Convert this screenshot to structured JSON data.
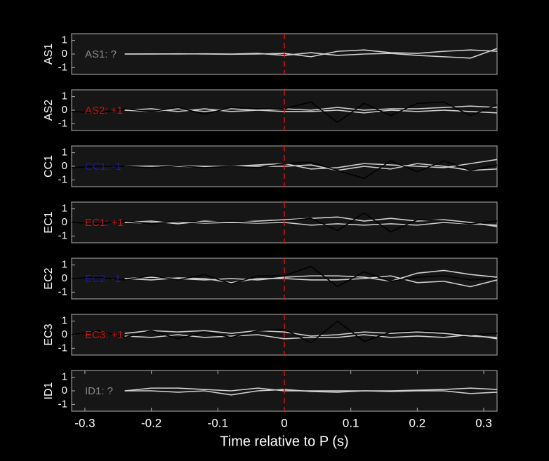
{
  "chart_data": [
    {
      "type": "line",
      "ylabel": "AS1",
      "annotation": "AS1: ?",
      "annotation_color": "#8a8a8a",
      "xlim": [
        -0.32,
        0.32
      ],
      "ylim": [
        -1.5,
        1.5
      ],
      "yticks": [
        -1,
        0,
        1
      ],
      "vline": 0,
      "vline_color": "#d01010",
      "x": [
        -0.32,
        -0.28,
        -0.24,
        -0.2,
        -0.16,
        -0.12,
        -0.08,
        -0.04,
        0,
        0.04,
        0.08,
        0.12,
        0.16,
        0.2,
        0.24,
        0.28,
        0.32
      ],
      "series": [
        {
          "color": "#d0d0d0",
          "values": [
            null,
            null,
            0,
            0,
            0.02,
            0,
            -0.02,
            0,
            0.05,
            -0.2,
            0.2,
            0.3,
            0.1,
            0.05,
            0.2,
            0.3,
            0.2
          ]
        },
        {
          "color": "#d0d0d0",
          "values": [
            null,
            null,
            0,
            0.01,
            0,
            0.02,
            0,
            0.05,
            -0.1,
            0.1,
            -0.1,
            0,
            0.05,
            -0.1,
            -0.2,
            -0.3,
            0.4
          ]
        }
      ]
    },
    {
      "type": "line",
      "ylabel": "AS2",
      "annotation": "AS2: +1",
      "annotation_color": "#cc1010",
      "xlim": [
        -0.32,
        0.32
      ],
      "ylim": [
        -1.5,
        1.5
      ],
      "yticks": [
        -1,
        0,
        1
      ],
      "vline": 0,
      "vline_color": "#d01010",
      "x": [
        -0.32,
        -0.28,
        -0.24,
        -0.2,
        -0.16,
        -0.12,
        -0.08,
        -0.04,
        0,
        0.04,
        0.08,
        0.12,
        0.16,
        0.2,
        0.24,
        0.28,
        0.32
      ],
      "series": [
        {
          "color": "#d0d0d0",
          "values": [
            null,
            null,
            0,
            0.1,
            -0.1,
            0.1,
            -0.1,
            0,
            0.1,
            0,
            0.2,
            0,
            0.1,
            0.1,
            0.2,
            0.3,
            0.2
          ]
        },
        {
          "color": "#d0d0d0",
          "values": [
            null,
            null,
            0,
            -0.1,
            0.1,
            -0.1,
            0.1,
            0,
            -0.1,
            -0.1,
            0,
            -0.2,
            0,
            -0.1,
            0,
            -0.1,
            -0.2
          ]
        },
        {
          "color": "#000000",
          "values": [
            -0.1,
            -0.2,
            0.1,
            -0.1,
            0.2,
            -0.3,
            0.2,
            0.1,
            0.1,
            0.6,
            -0.9,
            0.5,
            -0.4,
            0.5,
            0.6,
            -0.4,
            0.4
          ]
        }
      ]
    },
    {
      "type": "line",
      "ylabel": "CC1",
      "annotation": "CC1: -1",
      "annotation_color": "#1a1aa8",
      "xlim": [
        -0.32,
        0.32
      ],
      "ylim": [
        -1.5,
        1.5
      ],
      "yticks": [
        -1,
        0,
        1
      ],
      "vline": 0,
      "vline_color": "#d01010",
      "x": [
        -0.32,
        -0.28,
        -0.24,
        -0.2,
        -0.16,
        -0.12,
        -0.08,
        -0.04,
        0,
        0.04,
        0.08,
        0.12,
        0.16,
        0.2,
        0.24,
        0.28,
        0.32
      ],
      "series": [
        {
          "color": "#d0d0d0",
          "values": [
            null,
            null,
            0,
            0,
            0.05,
            0,
            0,
            0.1,
            0.2,
            -0.2,
            -0.1,
            0.2,
            0.1,
            0,
            -0.1,
            0.2,
            0.5
          ]
        },
        {
          "color": "#d0d0d0",
          "values": [
            null,
            null,
            0,
            0.02,
            0,
            -0.05,
            0,
            0,
            0,
            0.1,
            -0.3,
            0,
            -0.2,
            0.2,
            0,
            -0.3,
            -0.2
          ]
        },
        {
          "color": "#000000",
          "values": [
            -0.1,
            0,
            0,
            -0.1,
            0.05,
            -0.1,
            0,
            -0.1,
            0.2,
            0.3,
            -0.3,
            -0.9,
            0.4,
            -0.4,
            0.4,
            -0.3,
            0.1
          ]
        }
      ]
    },
    {
      "type": "line",
      "ylabel": "EC1",
      "annotation": "EC1: +1",
      "annotation_color": "#cc1010",
      "xlim": [
        -0.32,
        0.32
      ],
      "ylim": [
        -1.5,
        1.5
      ],
      "yticks": [
        -1,
        0,
        1
      ],
      "vline": 0,
      "vline_color": "#d01010",
      "x": [
        -0.32,
        -0.28,
        -0.24,
        -0.2,
        -0.16,
        -0.12,
        -0.08,
        -0.04,
        0,
        0.04,
        0.08,
        0.12,
        0.16,
        0.2,
        0.24,
        0.28,
        0.32
      ],
      "series": [
        {
          "color": "#d0d0d0",
          "values": [
            null,
            null,
            0,
            0.1,
            -0.1,
            0.1,
            0,
            0.1,
            0.2,
            0.3,
            0.4,
            0.1,
            0.3,
            0.1,
            0.2,
            0,
            -0.3
          ]
        },
        {
          "color": "#d0d0d0",
          "values": [
            null,
            null,
            0,
            -0.05,
            0.05,
            -0.05,
            0,
            -0.05,
            0,
            -0.2,
            -0.1,
            -0.2,
            -0.1,
            -0.2,
            0,
            -0.1,
            -0.2
          ]
        },
        {
          "color": "#000000",
          "values": [
            0,
            -0.1,
            0.1,
            -0.1,
            0.1,
            0,
            0.1,
            0,
            0.1,
            0.3,
            -0.6,
            0.7,
            -0.7,
            0.2,
            0.1,
            -0.1,
            0.1
          ]
        }
      ]
    },
    {
      "type": "line",
      "ylabel": "EC2",
      "annotation": "EC2: -1",
      "annotation_color": "#1a1aa8",
      "xlim": [
        -0.32,
        0.32
      ],
      "ylim": [
        -1.5,
        1.5
      ],
      "yticks": [
        -1,
        0,
        1
      ],
      "vline": 0,
      "vline_color": "#d01010",
      "x": [
        -0.32,
        -0.28,
        -0.24,
        -0.2,
        -0.16,
        -0.12,
        -0.08,
        -0.04,
        0,
        0.04,
        0.08,
        0.12,
        0.16,
        0.2,
        0.24,
        0.28,
        0.32
      ],
      "series": [
        {
          "color": "#d0d0d0",
          "values": [
            null,
            null,
            0,
            0.1,
            0,
            -0.1,
            0,
            -0.1,
            0.1,
            0.2,
            0.2,
            0.1,
            -0.2,
            0.4,
            0.6,
            0.3,
            0.1
          ]
        },
        {
          "color": "#d0d0d0",
          "values": [
            null,
            null,
            0,
            -0.1,
            0.05,
            0,
            -0.3,
            0,
            0,
            -0.1,
            -0.1,
            0,
            0.2,
            -0.3,
            -0.2,
            -0.6,
            -0.1
          ]
        },
        {
          "color": "#000000",
          "values": [
            0,
            0.1,
            -0.1,
            0.2,
            -0.1,
            0.3,
            -0.4,
            0.2,
            0.2,
            0.9,
            -0.6,
            0.5,
            -0.2,
            0.1,
            0.2,
            -0.1,
            0
          ]
        }
      ]
    },
    {
      "type": "line",
      "ylabel": "EC3",
      "annotation": "EC3: +1",
      "annotation_color": "#cc1010",
      "xlim": [
        -0.32,
        0.32
      ],
      "ylim": [
        -1.5,
        1.5
      ],
      "yticks": [
        -1,
        0,
        1
      ],
      "vline": 0,
      "vline_color": "#d01010",
      "x": [
        -0.32,
        -0.28,
        -0.24,
        -0.2,
        -0.16,
        -0.12,
        -0.08,
        -0.04,
        0,
        0.04,
        0.08,
        0.12,
        0.16,
        0.2,
        0.24,
        0.28,
        0.32
      ],
      "series": [
        {
          "color": "#d0d0d0",
          "values": [
            null,
            null,
            0.1,
            0.3,
            0.2,
            0.3,
            0.1,
            0.3,
            0.2,
            -0.1,
            0,
            0.2,
            0.1,
            0.2,
            0.1,
            -0.1,
            -0.2
          ]
        },
        {
          "color": "#d0d0d0",
          "values": [
            null,
            null,
            -0.1,
            -0.2,
            0,
            -0.2,
            -0.1,
            0,
            -0.3,
            -0.2,
            -0.2,
            0,
            -0.2,
            -0.1,
            -0.2,
            0,
            -0.3
          ]
        },
        {
          "color": "#000000",
          "values": [
            0,
            0.3,
            -0.2,
            0.3,
            -0.3,
            0.2,
            -0.2,
            0.3,
            0.4,
            -0.6,
            1,
            -0.5,
            0.2,
            0.3,
            0.2,
            0,
            0.1
          ]
        }
      ]
    },
    {
      "type": "line",
      "ylabel": "ID1",
      "annotation": "ID1: ?",
      "annotation_color": "#8a8a8a",
      "xlim": [
        -0.32,
        0.32
      ],
      "ylim": [
        -1.5,
        1.5
      ],
      "yticks": [
        -1,
        0,
        1
      ],
      "vline": 0,
      "vline_color": "#d01010",
      "xticks": [
        -0.3,
        -0.2,
        -0.1,
        0,
        0.1,
        0.2,
        0.3
      ],
      "xlabel": "Time relative to P (s)",
      "x": [
        -0.32,
        -0.28,
        -0.24,
        -0.2,
        -0.16,
        -0.12,
        -0.08,
        -0.04,
        0,
        0.04,
        0.08,
        0.12,
        0.16,
        0.2,
        0.24,
        0.28,
        0.32
      ],
      "series": [
        {
          "color": "#d0d0d0",
          "values": [
            null,
            null,
            0,
            0.2,
            0.2,
            0.1,
            0,
            0.2,
            0,
            0,
            0,
            0,
            0,
            0.05,
            0.1,
            0.2,
            0.1
          ]
        },
        {
          "color": "#d0d0d0",
          "values": [
            null,
            null,
            0,
            0,
            -0.1,
            0,
            -0.3,
            0,
            0.1,
            -0.05,
            -0.1,
            0,
            -0.05,
            0,
            0,
            -0.2,
            -0.1
          ]
        }
      ]
    }
  ]
}
